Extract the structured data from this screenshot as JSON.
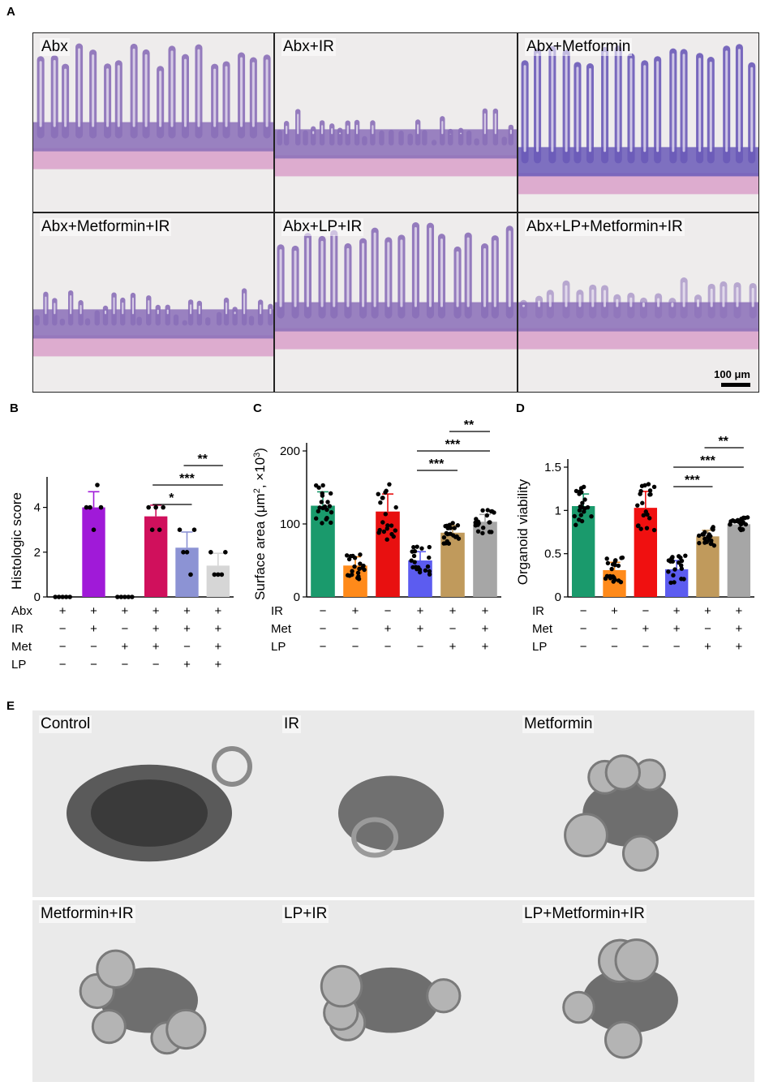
{
  "panels": {
    "A": {
      "letter": "A",
      "tiles": [
        {
          "label": "Abx",
          "style": "normal"
        },
        {
          "label": "Abx+IR",
          "style": "damaged"
        },
        {
          "label": "Abx+Metformin",
          "style": "dense"
        },
        {
          "label": "Abx+Metformin+IR",
          "style": "damaged"
        },
        {
          "label": "Abx+LP+IR",
          "style": "curved"
        },
        {
          "label": "Abx+LP+Metformin+IR",
          "style": "faint"
        }
      ],
      "scale_bar": "100 μm"
    },
    "E": {
      "letter": "E",
      "tiles": [
        {
          "label": "Control",
          "style": "big"
        },
        {
          "label": "IR",
          "style": "small"
        },
        {
          "label": "Metformin",
          "style": "budding"
        },
        {
          "label": "Metformin+IR",
          "style": "budding"
        },
        {
          "label": "LP+IR",
          "style": "budding"
        },
        {
          "label": "LP+Metformin+IR",
          "style": "budding"
        }
      ]
    }
  },
  "chart_data": [
    {
      "panel": "B",
      "type": "bar",
      "ylabel": "Histologic score",
      "ylim": [
        0,
        5
      ],
      "yticks": [
        0,
        2,
        4
      ],
      "values": [
        0,
        4.0,
        0,
        3.6,
        2.2,
        1.4
      ],
      "errors": [
        0,
        0.7,
        0,
        0.5,
        0.7,
        0.55
      ],
      "colors": [
        "#1a9a6c",
        "#a01ad8",
        "#e82020",
        "#d0105c",
        "#8c93d4",
        "#d6d6d6"
      ],
      "points": [
        [
          0,
          0,
          0,
          0,
          0
        ],
        [
          4,
          4,
          3,
          5,
          4
        ],
        [
          0,
          0,
          0,
          0,
          0
        ],
        [
          4,
          3,
          4,
          3,
          4
        ],
        [
          3,
          2,
          2,
          1,
          3
        ],
        [
          2,
          1,
          1,
          1,
          2
        ]
      ],
      "condition_rows": [
        {
          "label": "Abx",
          "signs": [
            "+",
            "+",
            "+",
            "+",
            "+",
            "+"
          ]
        },
        {
          "label": "IR",
          "signs": [
            "−",
            "+",
            "−",
            "+",
            "+",
            "+"
          ]
        },
        {
          "label": "Met",
          "signs": [
            "−",
            "−",
            "+",
            "+",
            "−",
            "+"
          ]
        },
        {
          "label": "LP",
          "signs": [
            "−",
            "−",
            "−",
            "−",
            "+",
            "+"
          ]
        }
      ],
      "significance": [
        {
          "from": 3,
          "to": 4,
          "label": "*"
        },
        {
          "from": 3,
          "to": 5,
          "label": "***"
        },
        {
          "from": 4,
          "to": 5,
          "label": "**"
        }
      ]
    },
    {
      "panel": "C",
      "type": "bar",
      "ylabel": "Surface area (μm², ×10³)",
      "ylabel_parts": [
        "Surface area (μm",
        "2",
        ", ×10",
        "3",
        ")"
      ],
      "ylim": [
        0,
        200
      ],
      "yticks": [
        0,
        100,
        200
      ],
      "values": [
        125,
        43,
        117,
        50,
        88,
        103
      ],
      "errors": [
        19,
        12,
        24,
        12,
        10,
        10
      ],
      "colors": [
        "#1a9a6c",
        "#ff8a1a",
        "#e81010",
        "#5c5cf0",
        "#c09a5c",
        "#a6a6a6"
      ],
      "condition_rows": [
        {
          "label": "IR",
          "signs": [
            "−",
            "+",
            "−",
            "+",
            "+",
            "+"
          ]
        },
        {
          "label": "Met",
          "signs": [
            "−",
            "−",
            "+",
            "+",
            "−",
            "+"
          ]
        },
        {
          "label": "LP",
          "signs": [
            "−",
            "−",
            "−",
            "−",
            "+",
            "+"
          ]
        }
      ],
      "significance": [
        {
          "from": 3,
          "to": 4,
          "label": "***"
        },
        {
          "from": 3,
          "to": 5,
          "label": "***"
        },
        {
          "from": 4,
          "to": 5,
          "label": "**"
        }
      ]
    },
    {
      "panel": "D",
      "type": "bar",
      "ylabel": "Organoid viability",
      "ylim": [
        0,
        1.5
      ],
      "yticks": [
        0,
        0.5,
        1,
        1.5
      ],
      "ytick_labels": [
        "0",
        "0.5",
        "1",
        "1.5"
      ],
      "values": [
        1.05,
        0.31,
        1.03,
        0.32,
        0.7,
        0.84
      ],
      "errors": [
        0.14,
        0.09,
        0.19,
        0.1,
        0.07,
        0.05
      ],
      "colors": [
        "#1a9a6c",
        "#ff8a1a",
        "#f01010",
        "#5c5cf0",
        "#c09a5c",
        "#a6a6a6"
      ],
      "condition_rows": [
        {
          "label": "IR",
          "signs": [
            "−",
            "+",
            "−",
            "+",
            "+",
            "+"
          ]
        },
        {
          "label": "Met",
          "signs": [
            "−",
            "−",
            "+",
            "+",
            "−",
            "+"
          ]
        },
        {
          "label": "LP",
          "signs": [
            "−",
            "−",
            "−",
            "−",
            "+",
            "+"
          ]
        }
      ],
      "significance": [
        {
          "from": 3,
          "to": 4,
          "label": "***"
        },
        {
          "from": 3,
          "to": 5,
          "label": "***"
        },
        {
          "from": 4,
          "to": 5,
          "label": "**"
        }
      ]
    }
  ]
}
